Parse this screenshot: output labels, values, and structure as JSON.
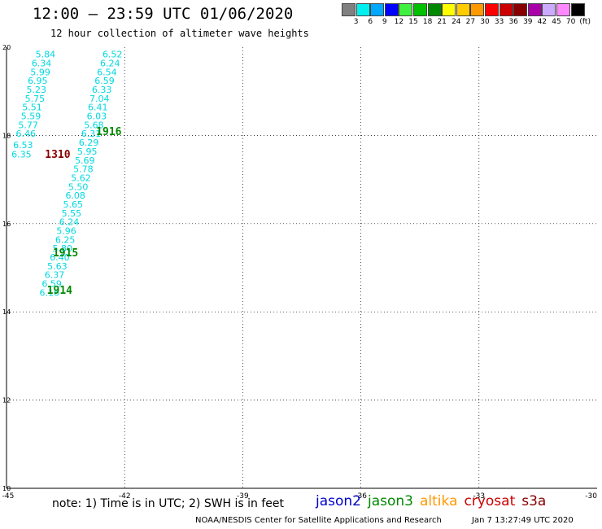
{
  "header": {
    "title": "12:00 – 23:59 UTC 01/06/2020",
    "subtitle": "12 hour collection of altimeter wave heights"
  },
  "legend": {
    "colors": [
      "#808080",
      "#00f0f0",
      "#00a8ff",
      "#0000ff",
      "#40f040",
      "#00c000",
      "#008800",
      "#ffff00",
      "#ffcc00",
      "#ff9900",
      "#ff0000",
      "#cc0000",
      "#880000",
      "#aa00aa",
      "#ccaaff",
      "#ff88ff",
      "#000000"
    ],
    "labels": [
      "3",
      "6",
      "9",
      "12",
      "15",
      "18",
      "21",
      "24",
      "27",
      "30",
      "33",
      "36",
      "39",
      "42",
      "45",
      "70",
      "(ft)"
    ]
  },
  "chart_data": {
    "type": "scatter",
    "xlim": [
      -45,
      -30
    ],
    "ylim": [
      10,
      20
    ],
    "x_ticks": [
      "-45",
      "-42",
      "-39",
      "-36",
      "-33",
      "-30"
    ],
    "y_ticks": [
      "20",
      "18",
      "16",
      "14",
      "12",
      "10"
    ],
    "tracks": [
      {
        "satellite": "jason3",
        "color": "#00d8e0",
        "points": [
          {
            "lon": -44.01,
            "lat": 19.84,
            "value": "5.84"
          },
          {
            "lon": -44.11,
            "lat": 19.64,
            "value": "6.34"
          },
          {
            "lon": -44.14,
            "lat": 19.44,
            "value": "5.99"
          },
          {
            "lon": -44.21,
            "lat": 19.24,
            "value": "6.95"
          },
          {
            "lon": -44.24,
            "lat": 19.04,
            "value": "5.23"
          },
          {
            "lon": -44.28,
            "lat": 18.84,
            "value": "5.75"
          },
          {
            "lon": -44.35,
            "lat": 18.64,
            "value": "5.51"
          },
          {
            "lon": -44.38,
            "lat": 18.44,
            "value": "5.59"
          },
          {
            "lon": -44.45,
            "lat": 18.24,
            "value": "5.77"
          },
          {
            "lon": -44.51,
            "lat": 18.04,
            "value": "6.46"
          },
          {
            "lon": -44.58,
            "lat": 17.79,
            "value": "6.53"
          },
          {
            "lon": -44.62,
            "lat": 17.57,
            "value": "6.35"
          }
        ]
      },
      {
        "satellite": "jason3",
        "color": "#00d8e0",
        "points": [
          {
            "lon": -42.31,
            "lat": 19.84,
            "value": "6.52"
          },
          {
            "lon": -42.37,
            "lat": 19.64,
            "value": "6.24"
          },
          {
            "lon": -42.45,
            "lat": 19.44,
            "value": "6.54"
          },
          {
            "lon": -42.51,
            "lat": 19.24,
            "value": "6.59"
          },
          {
            "lon": -42.58,
            "lat": 19.04,
            "value": "6.33"
          },
          {
            "lon": -42.64,
            "lat": 18.84,
            "value": "7.04"
          },
          {
            "lon": -42.68,
            "lat": 18.64,
            "value": "6.41"
          },
          {
            "lon": -42.71,
            "lat": 18.44,
            "value": "6.03"
          },
          {
            "lon": -42.78,
            "lat": 18.24,
            "value": "5.68"
          },
          {
            "lon": -42.85,
            "lat": 18.04,
            "value": "6.31"
          },
          {
            "lon": -42.91,
            "lat": 17.84,
            "value": "6.29"
          },
          {
            "lon": -42.95,
            "lat": 17.64,
            "value": "5.95"
          },
          {
            "lon": -43.01,
            "lat": 17.44,
            "value": "5.69"
          },
          {
            "lon": -43.05,
            "lat": 17.24,
            "value": "5.78"
          },
          {
            "lon": -43.11,
            "lat": 17.04,
            "value": "5.62"
          },
          {
            "lon": -43.18,
            "lat": 16.84,
            "value": "5.50"
          },
          {
            "lon": -43.25,
            "lat": 16.64,
            "value": "6.08"
          },
          {
            "lon": -43.31,
            "lat": 16.44,
            "value": "5.65"
          },
          {
            "lon": -43.35,
            "lat": 16.24,
            "value": "5.55"
          },
          {
            "lon": -43.41,
            "lat": 16.04,
            "value": "6.24"
          },
          {
            "lon": -43.48,
            "lat": 15.84,
            "value": "5.96"
          },
          {
            "lon": -43.51,
            "lat": 15.64,
            "value": "6.25"
          },
          {
            "lon": -43.58,
            "lat": 15.44,
            "value": "5.80"
          },
          {
            "lon": -43.65,
            "lat": 15.24,
            "value": "6.40"
          },
          {
            "lon": -43.71,
            "lat": 15.04,
            "value": "5.63"
          },
          {
            "lon": -43.78,
            "lat": 14.84,
            "value": "6.37"
          },
          {
            "lon": -43.85,
            "lat": 14.64,
            "value": "6.59"
          },
          {
            "lon": -43.91,
            "lat": 14.44,
            "value": "6.16"
          }
        ]
      }
    ],
    "time_labels": [
      {
        "text": "1916",
        "lon": -42.4,
        "lat": 18.1,
        "color": "#008800"
      },
      {
        "text": "1310",
        "lon": -43.7,
        "lat": 17.58,
        "color": "#8b0000"
      },
      {
        "text": "1915",
        "lon": -43.5,
        "lat": 15.35,
        "color": "#008800"
      },
      {
        "text": "1914",
        "lon": -43.65,
        "lat": 14.5,
        "color": "#008800"
      }
    ]
  },
  "footer": {
    "note": "note: 1) Time is in UTC; 2) SWH is in feet",
    "satellites": [
      {
        "name": "jason2",
        "color": "#0000cc"
      },
      {
        "name": "jason3",
        "color": "#008800"
      },
      {
        "name": "altika",
        "color": "#ff9900"
      },
      {
        "name": "cryosat",
        "color": "#cc0000"
      },
      {
        "name": "s3a",
        "color": "#880000"
      }
    ],
    "credit": "NOAA/NESDIS Center for Satellite Applications and Research",
    "timestamp": "Jan  7 13:27:49 UTC 2020"
  }
}
